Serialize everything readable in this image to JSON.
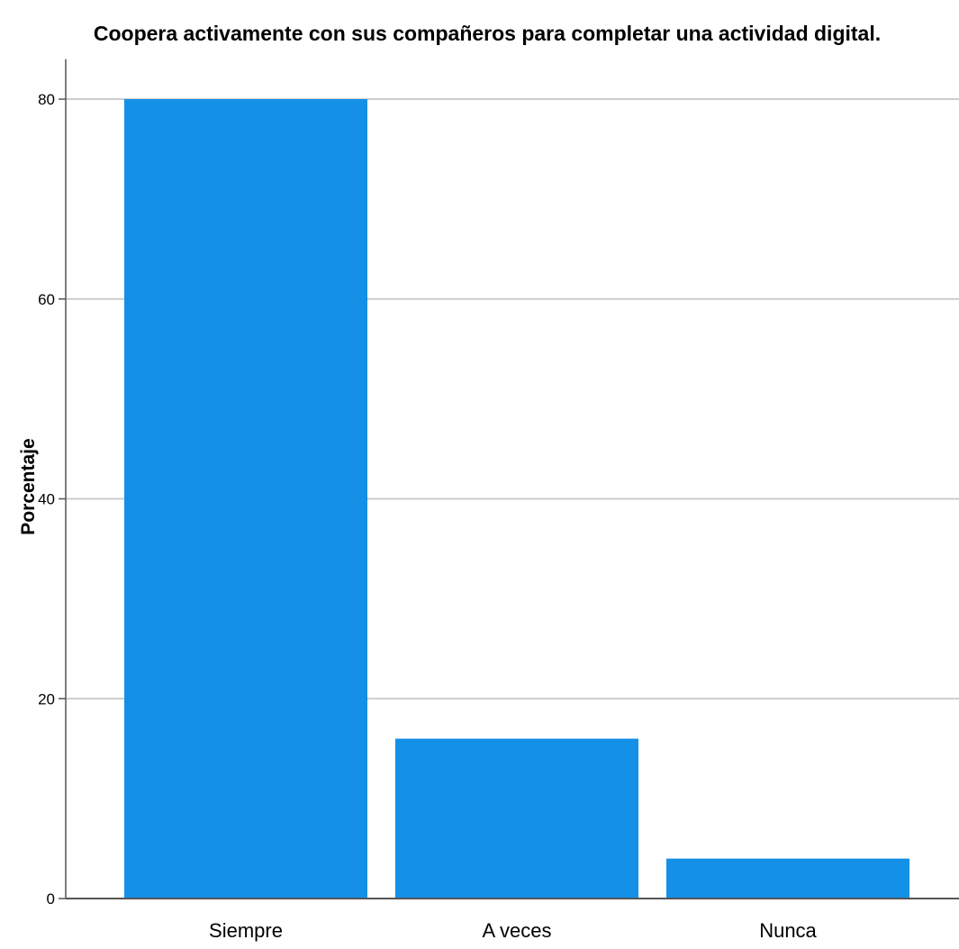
{
  "chart_data": {
    "type": "bar",
    "title": "Coopera activamente con sus compañeros para completar una actividad digital.",
    "xlabel": "",
    "ylabel": "Porcentaje",
    "categories": [
      "Siempre",
      "A veces",
      "Nunca"
    ],
    "values": [
      80,
      16,
      4
    ],
    "ylim": [
      0,
      84
    ],
    "yticks": [
      0,
      20,
      40,
      60,
      80
    ],
    "grid": true,
    "legend": "none",
    "colors": {
      "bar": "#1490e7",
      "grid": "#cccccc",
      "axis": "#555555",
      "background": "#ffffff"
    }
  }
}
